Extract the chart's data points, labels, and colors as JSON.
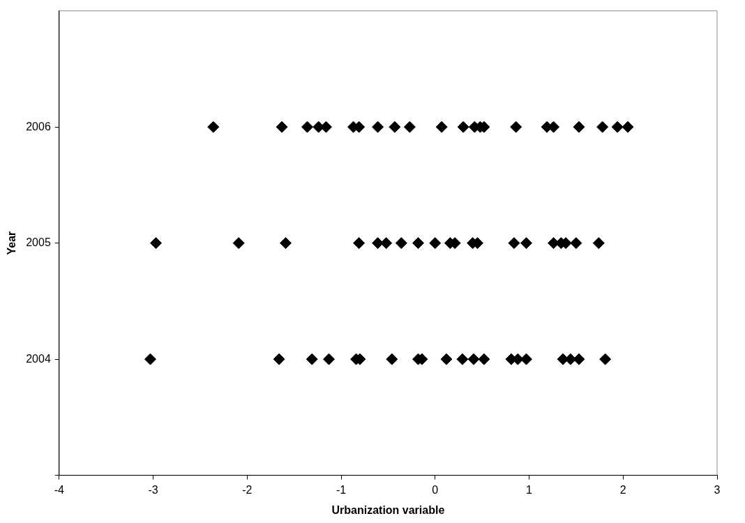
{
  "chart_data": {
    "type": "scatter",
    "xlabel": "Urbanization variable",
    "ylabel": "Year",
    "xlim": [
      -4,
      3
    ],
    "xticks": [
      -4,
      -3,
      -2,
      -1,
      0,
      1,
      2,
      3
    ],
    "ylim": [
      2003,
      2007
    ],
    "yticks": [
      {
        "value": 2003,
        "label": null
      },
      2004,
      2005,
      2006
    ],
    "marker": "diamond",
    "grid": false,
    "legend": false,
    "series": [
      {
        "color": "#000000",
        "x": [
          -2.36,
          -1.63,
          -1.36,
          -1.24,
          -1.16,
          -0.87,
          -0.81,
          -0.61,
          -0.43,
          -0.27,
          0.07,
          0.3,
          0.42,
          0.48,
          0.52,
          0.86,
          1.19,
          1.26,
          1.53,
          1.78,
          1.94,
          2.05
        ],
        "values": [
          2006,
          2006,
          2006,
          2006,
          2006,
          2006,
          2006,
          2006,
          2006,
          2006,
          2006,
          2006,
          2006,
          2006,
          2006,
          2006,
          2006,
          2006,
          2006,
          2006,
          2006,
          2006
        ]
      },
      {
        "color": "#000000",
        "x": [
          -2.97,
          -2.09,
          -1.59,
          -0.81,
          -0.61,
          -0.52,
          -0.36,
          -0.18,
          0.0,
          0.16,
          0.21,
          0.4,
          0.45,
          0.84,
          0.97,
          1.26,
          1.34,
          1.39,
          1.5,
          1.74
        ],
        "values": [
          2005,
          2005,
          2005,
          2005,
          2005,
          2005,
          2005,
          2005,
          2005,
          2005,
          2005,
          2005,
          2005,
          2005,
          2005,
          2005,
          2005,
          2005,
          2005,
          2005
        ]
      },
      {
        "color": "#000000",
        "x": [
          -3.03,
          -1.66,
          -1.31,
          -1.13,
          -0.84,
          -0.8,
          -0.46,
          -0.18,
          -0.14,
          0.12,
          0.29,
          0.41,
          0.52,
          0.81,
          0.88,
          0.97,
          1.36,
          1.44,
          1.53,
          1.81
        ],
        "values": [
          2004,
          2004,
          2004,
          2004,
          2004,
          2004,
          2004,
          2004,
          2004,
          2004,
          2004,
          2004,
          2004,
          2004,
          2004,
          2004,
          2004,
          2004,
          2004,
          2004
        ]
      }
    ]
  }
}
